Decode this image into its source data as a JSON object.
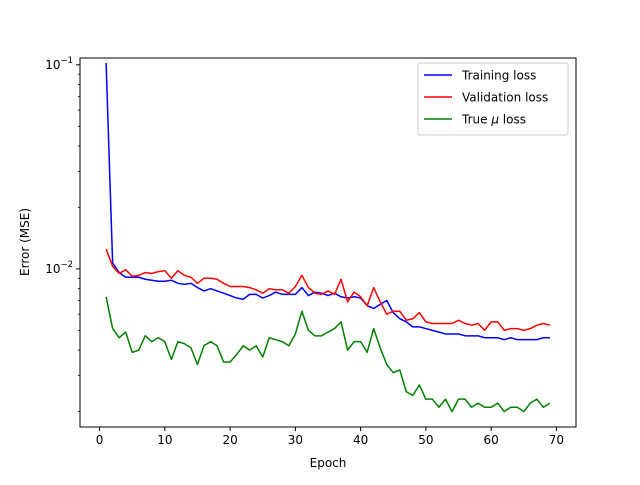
{
  "chart_data": {
    "type": "line",
    "title": "",
    "xlabel": "Epoch",
    "ylabel": "Error (MSE)",
    "xlim": [
      -3,
      73
    ],
    "ylim": [
      0.00168,
      0.108
    ],
    "yscale": "log",
    "grid": false,
    "legend_position": "top-right",
    "x_ticks": [
      0,
      10,
      20,
      30,
      40,
      50,
      60,
      70
    ],
    "x_tick_labels": [
      "0",
      "10",
      "20",
      "30",
      "40",
      "50",
      "60",
      "70"
    ],
    "y_ticks": [
      0.1,
      0.01
    ],
    "y_tick_labels": [
      {
        "base": "10",
        "exp": "−1"
      },
      {
        "base": "10",
        "exp": "−2"
      }
    ],
    "y_minor_ticks": [
      0.002,
      0.003,
      0.004,
      0.005,
      0.006,
      0.007,
      0.008,
      0.009,
      0.02,
      0.03,
      0.04,
      0.05,
      0.06,
      0.07,
      0.08,
      0.09
    ],
    "x": [
      1,
      2,
      3,
      4,
      5,
      6,
      7,
      8,
      9,
      10,
      11,
      12,
      13,
      14,
      15,
      16,
      17,
      18,
      19,
      20,
      21,
      22,
      23,
      24,
      25,
      26,
      27,
      28,
      29,
      30,
      31,
      32,
      33,
      34,
      35,
      36,
      37,
      38,
      39,
      40,
      41,
      42,
      43,
      44,
      45,
      46,
      47,
      48,
      49,
      50,
      51,
      52,
      53,
      54,
      55,
      56,
      57,
      58,
      59,
      60,
      61,
      62,
      63,
      64,
      65,
      66,
      67,
      68,
      69
    ],
    "series": [
      {
        "name": "Training loss",
        "color": "#0000ff",
        "values": [
          0.102,
          0.0107,
          0.0096,
          0.0091,
          0.0091,
          0.0091,
          0.0089,
          0.0088,
          0.0087,
          0.0087,
          0.0088,
          0.0085,
          0.0084,
          0.0085,
          0.0081,
          0.0078,
          0.008,
          0.0078,
          0.0076,
          0.0074,
          0.0072,
          0.0071,
          0.0075,
          0.0075,
          0.0072,
          0.0074,
          0.0077,
          0.0075,
          0.0075,
          0.0075,
          0.0081,
          0.0074,
          0.0077,
          0.0076,
          0.0074,
          0.0076,
          0.0073,
          0.0072,
          0.0073,
          0.0072,
          0.0066,
          0.0064,
          0.0067,
          0.007,
          0.0061,
          0.0057,
          0.0055,
          0.0052,
          0.0052,
          0.0051,
          0.005,
          0.0049,
          0.0048,
          0.0048,
          0.0048,
          0.0047,
          0.0047,
          0.0047,
          0.0046,
          0.0046,
          0.0046,
          0.0045,
          0.0046,
          0.0045,
          0.0045,
          0.0045,
          0.0045,
          0.0046,
          0.0046
        ]
      },
      {
        "name": "Validation loss",
        "color": "#ff0000",
        "values": [
          0.0125,
          0.0103,
          0.0095,
          0.0099,
          0.0092,
          0.0093,
          0.0096,
          0.0095,
          0.0097,
          0.0098,
          0.009,
          0.0098,
          0.0093,
          0.0091,
          0.0085,
          0.009,
          0.009,
          0.0089,
          0.0085,
          0.0082,
          0.0082,
          0.0082,
          0.0081,
          0.0079,
          0.0076,
          0.008,
          0.0079,
          0.0079,
          0.0076,
          0.0082,
          0.0093,
          0.0081,
          0.0076,
          0.0075,
          0.0078,
          0.0075,
          0.0089,
          0.0069,
          0.0077,
          0.0073,
          0.0066,
          0.0081,
          0.0069,
          0.006,
          0.0062,
          0.0062,
          0.0056,
          0.0057,
          0.0061,
          0.0055,
          0.0054,
          0.0054,
          0.0054,
          0.0054,
          0.0056,
          0.0054,
          0.0053,
          0.0054,
          0.005,
          0.0055,
          0.0055,
          0.005,
          0.0051,
          0.0051,
          0.005,
          0.0051,
          0.0053,
          0.0054,
          0.0053
        ]
      },
      {
        "name": "True μ loss",
        "color": "#008000",
        "values": [
          0.0073,
          0.0051,
          0.0046,
          0.0049,
          0.0039,
          0.004,
          0.0047,
          0.0044,
          0.0046,
          0.0044,
          0.0036,
          0.0044,
          0.0043,
          0.0041,
          0.0034,
          0.0042,
          0.0044,
          0.0042,
          0.0035,
          0.0035,
          0.0038,
          0.0042,
          0.004,
          0.0042,
          0.0037,
          0.0046,
          0.0045,
          0.0044,
          0.0042,
          0.0048,
          0.0062,
          0.005,
          0.0047,
          0.0047,
          0.0049,
          0.0051,
          0.0055,
          0.004,
          0.0044,
          0.0044,
          0.0039,
          0.0051,
          0.0041,
          0.0034,
          0.0031,
          0.0032,
          0.0025,
          0.0024,
          0.0027,
          0.0023,
          0.0023,
          0.0021,
          0.0023,
          0.002,
          0.0023,
          0.0023,
          0.0021,
          0.0022,
          0.0021,
          0.0021,
          0.0022,
          0.002,
          0.0021,
          0.0021,
          0.002,
          0.0022,
          0.0023,
          0.0021,
          0.0022
        ]
      }
    ],
    "legend": [
      {
        "label": "Training loss",
        "color": "#0000ff"
      },
      {
        "label": "Validation loss",
        "color": "#ff0000"
      },
      {
        "label_prefix": "True ",
        "label_symbol": "μ",
        "label_suffix": " loss",
        "color": "#008000"
      }
    ]
  }
}
